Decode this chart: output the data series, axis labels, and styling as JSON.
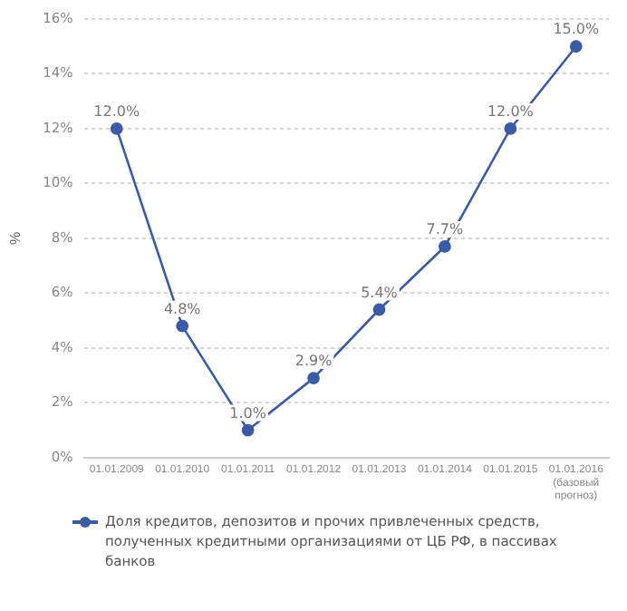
{
  "chart_data": {
    "type": "line",
    "ylabel": "%",
    "categories": [
      "01.01.2009",
      "01.01.2010",
      "01.01.2011",
      "01.01.2012",
      "01.01.2013",
      "01.01.2014",
      "01.01.2015",
      "01.01.2016 (базовый прогноз)"
    ],
    "series": [
      {
        "name": "Доля кредитов, депозитов и прочих привлеченных средств, полученных кредитными организациями от ЦБ РФ, в пассивах банков",
        "color": "#3b5ba5",
        "values": [
          12.0,
          4.8,
          1.0,
          2.9,
          5.4,
          7.7,
          12.0,
          15.0
        ],
        "value_labels": [
          "12.0%",
          "4.8%",
          "1.0%",
          "2.9%",
          "5.4%",
          "7.7%",
          "12.0%",
          "15.0%"
        ]
      }
    ],
    "ylim": [
      0,
      16
    ],
    "yticks": [
      {
        "value": 0,
        "label": "0%"
      },
      {
        "value": 2,
        "label": "2%"
      },
      {
        "value": 4,
        "label": "4%"
      },
      {
        "value": 6,
        "label": "6%"
      },
      {
        "value": 8,
        "label": "8%"
      },
      {
        "value": 10,
        "label": "10%"
      },
      {
        "value": 12,
        "label": "12%"
      },
      {
        "value": 14,
        "label": "14%"
      },
      {
        "value": 16,
        "label": "16%"
      }
    ],
    "grid": "y",
    "legend": "bottom",
    "marker": "circle",
    "line_style": "solid"
  }
}
